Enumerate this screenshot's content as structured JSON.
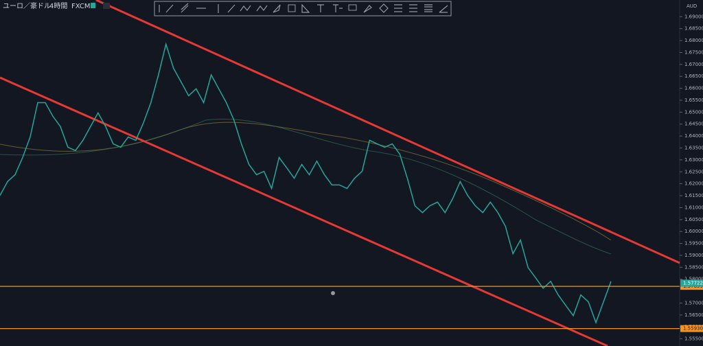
{
  "header": {
    "symbol": "ユーロ／豪ドル",
    "timeframe": "4時間",
    "broker": "FXCM",
    "currency": "AUD"
  },
  "chart_data": {
    "type": "line",
    "color": "#26a69a",
    "values": [
      1.6151,
      1.6209,
      1.6238,
      1.631,
      1.6396,
      1.654,
      1.654,
      1.6483,
      1.644,
      1.6353,
      1.6339,
      1.6382,
      1.644,
      1.6497,
      1.644,
      1.6367,
      1.6353,
      1.6396,
      1.6382,
      1.6454,
      1.654,
      1.6656,
      1.6785,
      1.6684,
      1.6627,
      1.6569,
      1.6598,
      1.654,
      1.6656,
      1.6598,
      1.654,
      1.6468,
      1.6367,
      1.6281,
      1.6238,
      1.6252,
      1.618,
      1.631,
      1.6267,
      1.6223,
      1.6281,
      1.6238,
      1.6295,
      1.6238,
      1.6195,
      1.6195,
      1.618,
      1.6223,
      1.6252,
      1.6382,
      1.6367,
      1.6353,
      1.6367,
      1.6324,
      1.6223,
      1.6108,
      1.6079,
      1.6108,
      1.6123,
      1.6079,
      1.6137,
      1.6209,
      1.6151,
      1.6108,
      1.6079,
      1.6123,
      1.6079,
      1.6022,
      1.5907,
      1.5964,
      1.5849,
      1.5806,
      1.5762,
      1.5791,
      1.5734,
      1.569,
      1.5647,
      1.5734,
      1.5705,
      1.5618,
      1.5705,
      1.5791
    ],
    "ylim": [
      1.552,
      1.697
    ],
    "yticks": [
      {
        "value": 1.555,
        "label": "1.55500"
      },
      {
        "value": 1.56,
        "label": "1.56000"
      },
      {
        "value": 1.565,
        "label": "1.56500"
      },
      {
        "value": 1.57,
        "label": "1.57000"
      },
      {
        "value": 1.58,
        "label": "1.58000"
      },
      {
        "value": 1.585,
        "label": "1.58500"
      },
      {
        "value": 1.59,
        "label": "1.59000"
      },
      {
        "value": 1.595,
        "label": "1.59500"
      },
      {
        "value": 1.6,
        "label": "1.60000"
      },
      {
        "value": 1.605,
        "label": "1.60500"
      },
      {
        "value": 1.61,
        "label": "1.61000"
      },
      {
        "value": 1.615,
        "label": "1.61500"
      },
      {
        "value": 1.62,
        "label": "1.62000"
      },
      {
        "value": 1.625,
        "label": "1.62500"
      },
      {
        "value": 1.63,
        "label": "1.63000"
      },
      {
        "value": 1.635,
        "label": "1.63500"
      },
      {
        "value": 1.64,
        "label": "1.64000"
      },
      {
        "value": 1.645,
        "label": "1.64500"
      },
      {
        "value": 1.65,
        "label": "1.65000"
      },
      {
        "value": 1.655,
        "label": "1.65500"
      },
      {
        "value": 1.66,
        "label": "1.66000"
      },
      {
        "value": 1.665,
        "label": "1.66500"
      },
      {
        "value": 1.67,
        "label": "1.67000"
      },
      {
        "value": 1.675,
        "label": "1.67500"
      },
      {
        "value": 1.68,
        "label": "1.68000"
      },
      {
        "value": 1.685,
        "label": "1.68500"
      },
      {
        "value": 1.69,
        "label": "1.69000"
      }
    ],
    "current_price": {
      "value": 1.57722,
      "color": "#26a69a"
    },
    "levels": {
      "color": "#f7931a",
      "values": [
        1.57699,
        {
          "value": 1.5593,
          "label": "1.55930"
        }
      ]
    }
  }
}
